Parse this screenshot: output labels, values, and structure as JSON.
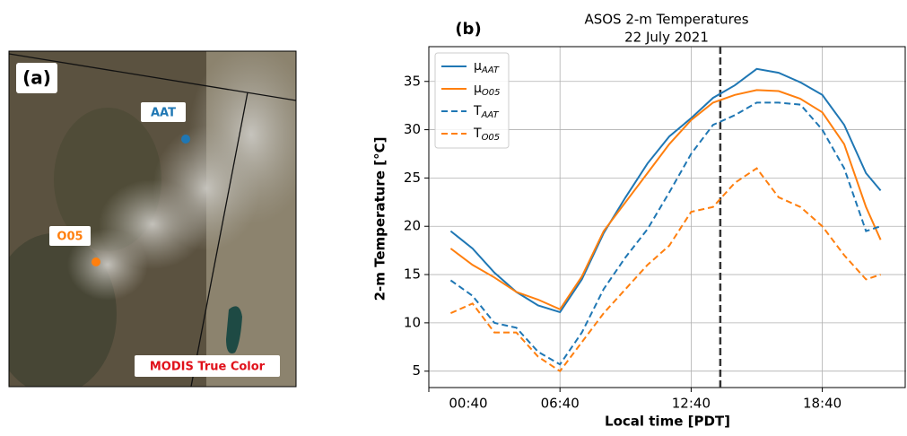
{
  "panel_a": {
    "label": "(a)",
    "site_1": "AAT",
    "site_2": "O05",
    "caption": "MODIS True Color"
  },
  "chart_data": {
    "type": "line",
    "panel_label": "(b)",
    "title": "ASOS 2-m Temperatures",
    "subtitle": "22 July 2021",
    "x_label": "Local time [PDT]",
    "y_label": "2-m Temperature [°C]",
    "x": [
      100,
      160,
      220,
      280,
      340,
      400,
      460,
      520,
      580,
      640,
      700,
      760,
      820,
      880,
      940,
      1000,
      1060,
      1120,
      1180,
      1240,
      1280
    ],
    "xlim": [
      40,
      1350
    ],
    "xticks": [
      {
        "value": 40,
        "label": "00:40"
      },
      {
        "value": 400,
        "label": "06:40"
      },
      {
        "value": 760,
        "label": "12:40"
      },
      {
        "value": 1120,
        "label": "18:40"
      }
    ],
    "ylim": [
      3.3,
      38.6
    ],
    "yticks": [
      5,
      10,
      15,
      20,
      25,
      30,
      35
    ],
    "grid": true,
    "vline": 840,
    "legend": "upper-left",
    "series": [
      {
        "name": "μ",
        "subscript": "AAT",
        "color": "#1f77b4",
        "dash": false,
        "values": [
          19.5,
          17.7,
          15.2,
          13.2,
          11.8,
          11.1,
          14.5,
          19.3,
          23.0,
          26.5,
          29.3,
          31.2,
          33.3,
          34.6,
          36.3,
          35.9,
          34.9,
          33.6,
          30.5,
          25.5,
          23.7
        ]
      },
      {
        "name": "μ",
        "subscript": "O05",
        "color": "#ff7f0e",
        "dash": false,
        "values": [
          17.7,
          16.0,
          14.7,
          13.2,
          12.4,
          11.4,
          14.8,
          19.5,
          22.5,
          25.5,
          28.5,
          31.0,
          32.8,
          33.6,
          34.1,
          34.0,
          33.2,
          31.8,
          28.5,
          22.0,
          18.6
        ]
      },
      {
        "name": "T",
        "subscript": "AAT",
        "color": "#1f77b4",
        "dash": true,
        "values": [
          14.4,
          12.8,
          10.0,
          9.5,
          7.0,
          5.7,
          9.0,
          13.5,
          16.8,
          19.7,
          23.5,
          27.5,
          30.5,
          31.5,
          32.8,
          32.8,
          32.6,
          30.0,
          26.0,
          19.5,
          20.0
        ]
      },
      {
        "name": "T",
        "subscript": "O05",
        "color": "#ff7f0e",
        "dash": true,
        "values": [
          11.0,
          12.0,
          9.0,
          9.0,
          6.5,
          5.0,
          8.0,
          11.0,
          13.5,
          16.0,
          18.0,
          21.5,
          22.0,
          24.5,
          26.0,
          23.0,
          22.0,
          20.0,
          17.0,
          14.5,
          15.0
        ]
      }
    ]
  }
}
